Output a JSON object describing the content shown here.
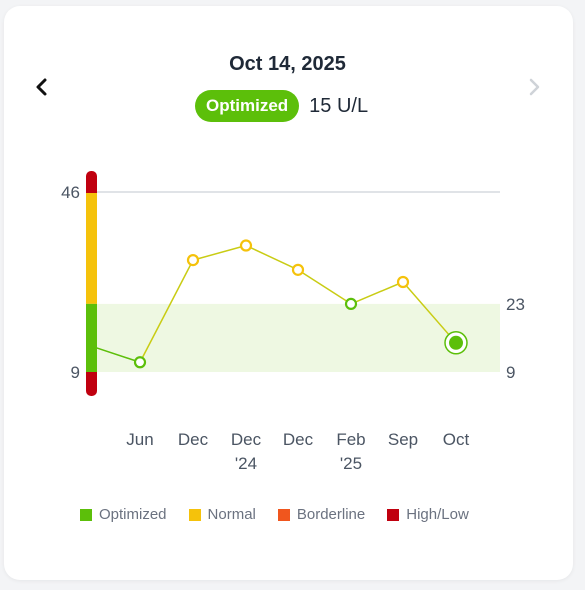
{
  "header": {
    "date": "Oct 14, 2025",
    "status_label": "Optimized",
    "value_text": "15 U/L"
  },
  "colors": {
    "optimized": "#5cbf0a",
    "normal": "#f5c20b",
    "borderline": "#f0561e",
    "high_low": "#c0000f",
    "optimal_band": "#eef8e2",
    "line_green": "#5cbf0a",
    "line_yellow": "#c9cc14"
  },
  "legend": [
    {
      "label": "Optimized",
      "key": "optimized"
    },
    {
      "label": "Normal",
      "key": "normal"
    },
    {
      "label": "Borderline",
      "key": "borderline"
    },
    {
      "label": "High/Low",
      "key": "high_low"
    }
  ],
  "chart_data": {
    "type": "line",
    "title": "",
    "xlabel": "",
    "ylabel": "",
    "left_axis_ticks": [
      "46",
      "9"
    ],
    "right_axis_ticks": [
      "23",
      "9"
    ],
    "optimal_range": [
      9,
      23
    ],
    "points": [
      {
        "label": [
          "Jun",
          ""
        ],
        "value": 11,
        "status": "optimized"
      },
      {
        "label": [
          "Dec",
          ""
        ],
        "value": 32,
        "status": "normal"
      },
      {
        "label": [
          "Dec",
          "'24"
        ],
        "value": 35,
        "status": "normal"
      },
      {
        "label": [
          "Dec",
          ""
        ],
        "value": 30,
        "status": "normal"
      },
      {
        "label": [
          "Feb",
          "'25"
        ],
        "value": 23,
        "status": "optimized"
      },
      {
        "label": [
          "Sep",
          ""
        ],
        "value": 27.5,
        "status": "normal"
      },
      {
        "label": [
          "Oct",
          ""
        ],
        "value": 15,
        "status": "optimized",
        "current": true
      }
    ],
    "start_value": 14
  }
}
